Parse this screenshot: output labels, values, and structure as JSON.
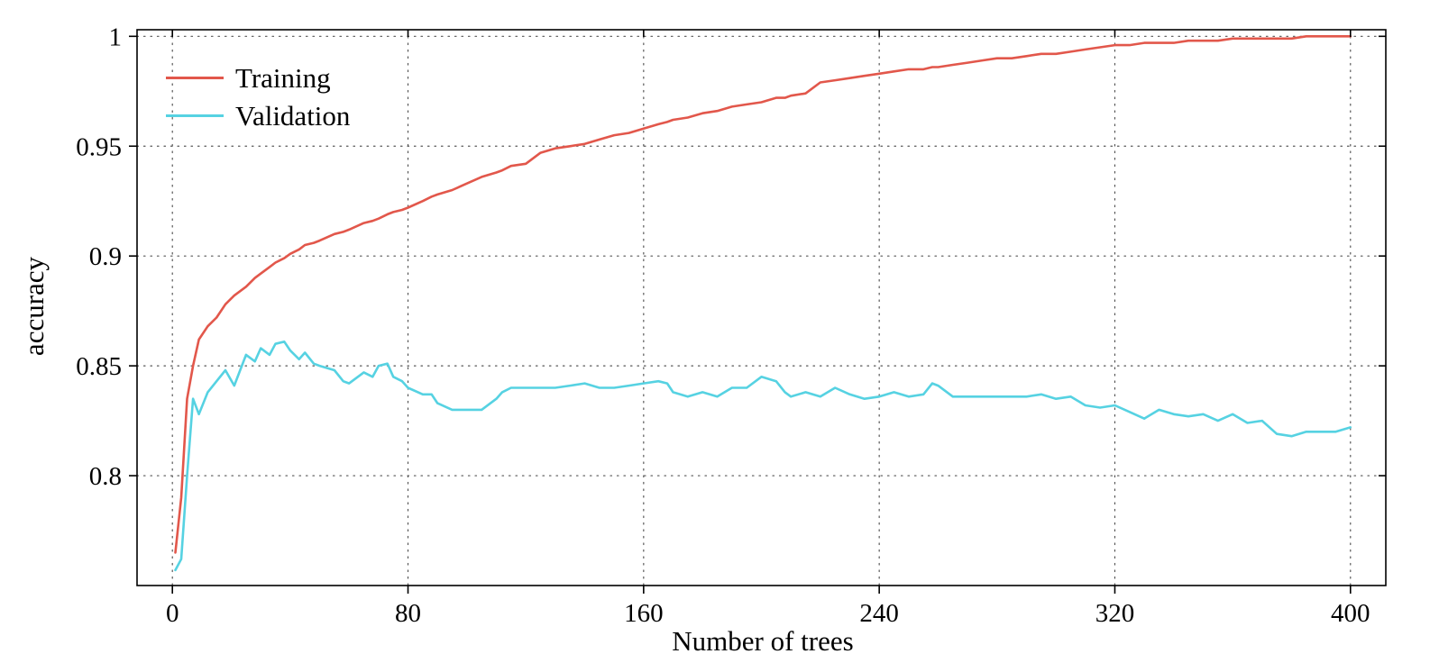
{
  "figure": {
    "background": "#ffffff"
  },
  "chart_data": {
    "type": "line",
    "title": "",
    "xlabel": "Number of trees",
    "ylabel": "accuracy",
    "xlim": [
      -12,
      412
    ],
    "ylim": [
      0.75,
      1.003
    ],
    "xticks": [
      0,
      80,
      160,
      240,
      320,
      400
    ],
    "xtick_labels": [
      "0",
      "80",
      "160",
      "240",
      "320",
      "400"
    ],
    "yticks": [
      0.8,
      0.85,
      0.9,
      0.95,
      1
    ],
    "ytick_labels": [
      "0.8",
      "0.85",
      "0.9",
      "0.95",
      "1"
    ],
    "grid": "dotted",
    "grid_color": "#555555",
    "axis_color": "#000000",
    "legend_position": "top-left",
    "series": [
      {
        "name": "Training",
        "color": "#e2574b",
        "x": [
          1,
          3,
          5,
          7,
          9,
          12,
          15,
          18,
          21,
          25,
          28,
          30,
          33,
          35,
          38,
          40,
          43,
          45,
          48,
          50,
          55,
          58,
          60,
          65,
          68,
          70,
          73,
          75,
          78,
          80,
          85,
          88,
          90,
          95,
          100,
          105,
          110,
          112,
          115,
          120,
          125,
          130,
          135,
          140,
          145,
          150,
          155,
          160,
          165,
          168,
          170,
          175,
          180,
          185,
          190,
          195,
          200,
          205,
          208,
          210,
          215,
          220,
          225,
          230,
          235,
          240,
          245,
          250,
          255,
          258,
          260,
          265,
          270,
          275,
          280,
          285,
          290,
          295,
          300,
          305,
          310,
          315,
          320,
          325,
          330,
          335,
          340,
          345,
          350,
          355,
          360,
          365,
          370,
          375,
          380,
          385,
          390,
          395,
          400
        ],
        "y": [
          0.765,
          0.79,
          0.835,
          0.85,
          0.862,
          0.868,
          0.872,
          0.878,
          0.882,
          0.886,
          0.89,
          0.892,
          0.895,
          0.897,
          0.899,
          0.901,
          0.903,
          0.905,
          0.906,
          0.907,
          0.91,
          0.911,
          0.912,
          0.915,
          0.916,
          0.917,
          0.919,
          0.92,
          0.921,
          0.922,
          0.925,
          0.927,
          0.928,
          0.93,
          0.933,
          0.936,
          0.938,
          0.939,
          0.941,
          0.942,
          0.947,
          0.949,
          0.95,
          0.951,
          0.953,
          0.955,
          0.956,
          0.958,
          0.96,
          0.961,
          0.962,
          0.963,
          0.965,
          0.966,
          0.968,
          0.969,
          0.97,
          0.972,
          0.972,
          0.973,
          0.974,
          0.979,
          0.98,
          0.981,
          0.982,
          0.983,
          0.984,
          0.985,
          0.985,
          0.986,
          0.986,
          0.987,
          0.988,
          0.989,
          0.99,
          0.99,
          0.991,
          0.992,
          0.992,
          0.993,
          0.994,
          0.995,
          0.996,
          0.996,
          0.997,
          0.997,
          0.997,
          0.998,
          0.998,
          0.998,
          0.999,
          0.999,
          0.999,
          0.999,
          0.999,
          1.0,
          1.0,
          1.0,
          1.0
        ]
      },
      {
        "name": "Validation",
        "color": "#56d2e2",
        "x": [
          1,
          3,
          5,
          7,
          9,
          12,
          15,
          18,
          21,
          25,
          28,
          30,
          33,
          35,
          38,
          40,
          43,
          45,
          48,
          50,
          55,
          58,
          60,
          65,
          68,
          70,
          73,
          75,
          78,
          80,
          85,
          88,
          90,
          95,
          100,
          105,
          110,
          112,
          115,
          120,
          125,
          130,
          135,
          140,
          145,
          150,
          155,
          160,
          165,
          168,
          170,
          175,
          180,
          185,
          190,
          195,
          200,
          205,
          208,
          210,
          215,
          220,
          225,
          230,
          235,
          240,
          245,
          250,
          255,
          258,
          260,
          265,
          270,
          275,
          280,
          285,
          290,
          295,
          300,
          305,
          310,
          315,
          320,
          325,
          330,
          335,
          340,
          345,
          350,
          355,
          360,
          365,
          370,
          375,
          380,
          385,
          390,
          395,
          400
        ],
        "y": [
          0.757,
          0.762,
          0.8,
          0.835,
          0.828,
          0.838,
          0.843,
          0.848,
          0.841,
          0.855,
          0.852,
          0.858,
          0.855,
          0.86,
          0.861,
          0.857,
          0.853,
          0.856,
          0.851,
          0.85,
          0.848,
          0.843,
          0.842,
          0.847,
          0.845,
          0.85,
          0.851,
          0.845,
          0.843,
          0.84,
          0.837,
          0.837,
          0.833,
          0.83,
          0.83,
          0.83,
          0.835,
          0.838,
          0.84,
          0.84,
          0.84,
          0.84,
          0.841,
          0.842,
          0.84,
          0.84,
          0.841,
          0.842,
          0.843,
          0.842,
          0.838,
          0.836,
          0.838,
          0.836,
          0.84,
          0.84,
          0.845,
          0.843,
          0.838,
          0.836,
          0.838,
          0.836,
          0.84,
          0.837,
          0.835,
          0.836,
          0.838,
          0.836,
          0.837,
          0.842,
          0.841,
          0.836,
          0.836,
          0.836,
          0.836,
          0.836,
          0.836,
          0.837,
          0.835,
          0.836,
          0.832,
          0.831,
          0.832,
          0.829,
          0.826,
          0.83,
          0.828,
          0.827,
          0.828,
          0.825,
          0.828,
          0.824,
          0.825,
          0.819,
          0.818,
          0.82,
          0.82,
          0.82,
          0.822
        ]
      }
    ]
  }
}
